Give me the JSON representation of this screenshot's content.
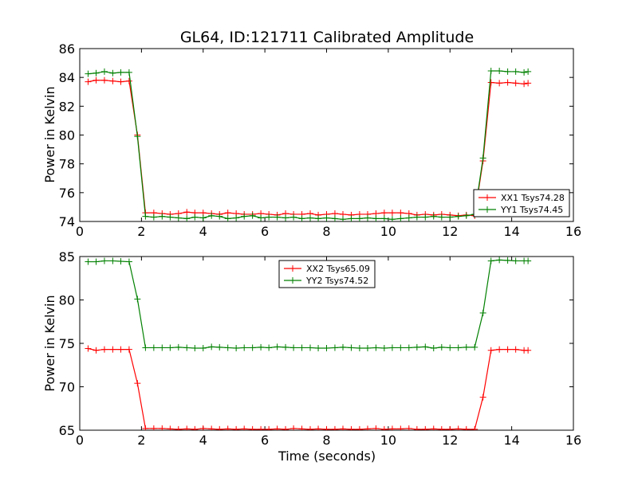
{
  "chart_data": [
    {
      "type": "line",
      "title": "GL64, ID:121711 Calibrated Amplitude",
      "xlabel": "",
      "ylabel": "Power in Kelvin",
      "xlim": [
        0,
        16
      ],
      "ylim": [
        74,
        86
      ],
      "xticks": [
        0,
        2,
        4,
        6,
        8,
        10,
        12,
        14,
        16
      ],
      "yticks": [
        74,
        76,
        78,
        80,
        82,
        84,
        86
      ],
      "legend_position": "lower-right",
      "x": [
        0.27,
        0.53,
        0.8,
        1.07,
        1.33,
        1.6,
        1.87,
        2.13,
        2.4,
        2.67,
        2.93,
        3.2,
        3.47,
        3.73,
        4.0,
        4.27,
        4.53,
        4.8,
        5.07,
        5.33,
        5.6,
        5.87,
        6.13,
        6.4,
        6.67,
        6.93,
        7.2,
        7.47,
        7.73,
        8.0,
        8.27,
        8.53,
        8.8,
        9.07,
        9.33,
        9.6,
        9.87,
        10.13,
        10.4,
        10.67,
        10.93,
        11.2,
        11.47,
        11.73,
        12.0,
        12.27,
        12.53,
        12.8,
        13.07,
        13.33,
        13.6,
        13.87,
        14.13,
        14.4,
        14.53
      ],
      "series": [
        {
          "name": "XX1 Tsys74.28",
          "color": "#ff0000",
          "values": [
            83.7,
            83.8,
            83.8,
            83.75,
            83.7,
            83.75,
            80.0,
            74.6,
            74.6,
            74.55,
            74.5,
            74.55,
            74.65,
            74.6,
            74.6,
            74.55,
            74.5,
            74.6,
            74.55,
            74.5,
            74.5,
            74.55,
            74.5,
            74.45,
            74.55,
            74.5,
            74.5,
            74.55,
            74.45,
            74.5,
            74.55,
            74.5,
            74.45,
            74.5,
            74.5,
            74.55,
            74.6,
            74.6,
            74.6,
            74.55,
            74.45,
            74.5,
            74.45,
            74.5,
            74.45,
            74.4,
            74.45,
            74.4,
            78.2,
            83.65,
            83.6,
            83.65,
            83.6,
            83.55,
            83.6
          ]
        },
        {
          "name": "YY1 Tsys74.45",
          "color": "#008000",
          "values": [
            84.25,
            84.3,
            84.4,
            84.3,
            84.35,
            84.35,
            79.9,
            74.35,
            74.3,
            74.35,
            74.3,
            74.25,
            74.2,
            74.3,
            74.25,
            74.4,
            74.35,
            74.2,
            74.25,
            74.35,
            74.4,
            74.25,
            74.3,
            74.3,
            74.25,
            74.3,
            74.2,
            74.25,
            74.2,
            74.25,
            74.2,
            74.15,
            74.2,
            74.2,
            74.25,
            74.2,
            74.2,
            74.15,
            74.2,
            74.25,
            74.3,
            74.3,
            74.35,
            74.3,
            74.3,
            74.35,
            74.4,
            74.5,
            78.4,
            84.45,
            84.45,
            84.4,
            84.4,
            84.35,
            84.4
          ]
        }
      ]
    },
    {
      "type": "line",
      "title": "",
      "xlabel": "Time (seconds)",
      "ylabel": "Power in Kelvin",
      "xlim": [
        0,
        16
      ],
      "ylim": [
        65,
        85
      ],
      "xticks": [
        0,
        2,
        4,
        6,
        8,
        10,
        12,
        14,
        16
      ],
      "yticks": [
        65,
        70,
        75,
        80,
        85
      ],
      "legend_position": "upper-center",
      "x": [
        0.27,
        0.53,
        0.8,
        1.07,
        1.33,
        1.6,
        1.87,
        2.13,
        2.4,
        2.67,
        2.93,
        3.2,
        3.47,
        3.73,
        4.0,
        4.27,
        4.53,
        4.8,
        5.07,
        5.33,
        5.6,
        5.87,
        6.13,
        6.4,
        6.67,
        6.93,
        7.2,
        7.47,
        7.73,
        8.0,
        8.27,
        8.53,
        8.8,
        9.07,
        9.33,
        9.6,
        9.87,
        10.13,
        10.4,
        10.67,
        10.93,
        11.2,
        11.47,
        11.73,
        12.0,
        12.27,
        12.53,
        12.8,
        13.07,
        13.33,
        13.6,
        13.87,
        14.13,
        14.4,
        14.53
      ],
      "series": [
        {
          "name": "XX2 Tsys65.09",
          "color": "#ff0000",
          "values": [
            74.4,
            74.2,
            74.3,
            74.3,
            74.3,
            74.3,
            70.4,
            65.2,
            65.2,
            65.2,
            65.15,
            65.1,
            65.15,
            65.1,
            65.2,
            65.15,
            65.1,
            65.15,
            65.1,
            65.15,
            65.1,
            65.1,
            65.1,
            65.15,
            65.1,
            65.2,
            65.15,
            65.1,
            65.15,
            65.1,
            65.1,
            65.15,
            65.1,
            65.1,
            65.15,
            65.2,
            65.1,
            65.15,
            65.15,
            65.2,
            65.1,
            65.1,
            65.15,
            65.1,
            65.1,
            65.15,
            65.1,
            65.1,
            68.8,
            74.2,
            74.3,
            74.3,
            74.3,
            74.2,
            74.2
          ]
        },
        {
          "name": "YY2 Tsys74.52",
          "color": "#008000",
          "values": [
            84.4,
            84.4,
            84.5,
            84.5,
            84.45,
            84.4,
            80.1,
            74.5,
            74.5,
            74.5,
            74.5,
            74.55,
            74.5,
            74.45,
            74.45,
            74.6,
            74.55,
            74.5,
            74.45,
            74.5,
            74.5,
            74.55,
            74.5,
            74.6,
            74.55,
            74.5,
            74.5,
            74.5,
            74.45,
            74.45,
            74.5,
            74.55,
            74.5,
            74.45,
            74.45,
            74.5,
            74.45,
            74.5,
            74.5,
            74.5,
            74.55,
            74.6,
            74.45,
            74.55,
            74.5,
            74.5,
            74.55,
            74.55,
            78.5,
            84.5,
            84.6,
            84.55,
            84.5,
            84.5,
            84.5
          ]
        }
      ]
    }
  ]
}
